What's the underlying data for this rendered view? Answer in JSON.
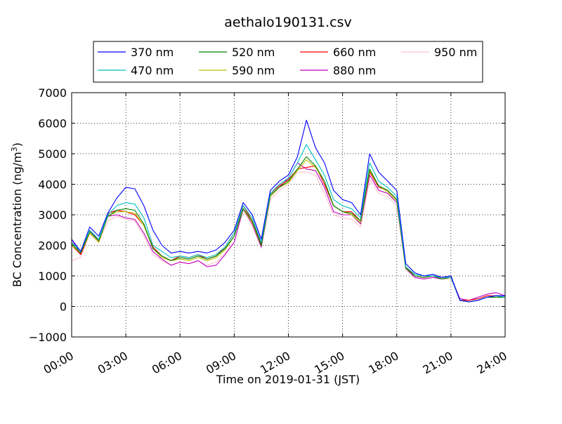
{
  "chart_data": {
    "type": "line",
    "title": "aethalo190131.csv",
    "xlabel": "Time on 2019-01-31 (JST)",
    "ylabel": "BC Concentration (ng/m³)",
    "ylabel_main": "BC Concentration (ng/m",
    "ylabel_sup": "3",
    "ylabel_close": ")",
    "xlim": [
      0,
      24
    ],
    "ylim": [
      -1000,
      7000
    ],
    "x_unit": "hours since 2019-01-31 00:00",
    "x_ticks": [
      0,
      3,
      6,
      9,
      12,
      15,
      18,
      21,
      24
    ],
    "x_tick_labels": [
      "00:00",
      "03:00",
      "06:00",
      "09:00",
      "12:00",
      "15:00",
      "18:00",
      "21:00",
      "24:00"
    ],
    "y_ticks": [
      -1000,
      0,
      1000,
      2000,
      3000,
      4000,
      5000,
      6000,
      7000
    ],
    "y_tick_labels": [
      "−1000",
      "0",
      "1000",
      "2000",
      "3000",
      "4000",
      "5000",
      "6000",
      "7000"
    ],
    "grid": true,
    "legend_position": "top (above plot)",
    "x": [
      0.0,
      0.5,
      1.0,
      1.5,
      2.0,
      2.5,
      3.0,
      3.5,
      4.0,
      4.5,
      5.0,
      5.5,
      6.0,
      6.5,
      7.0,
      7.5,
      8.0,
      8.5,
      9.0,
      9.5,
      10.0,
      10.5,
      11.0,
      11.5,
      12.0,
      12.5,
      13.0,
      13.5,
      14.0,
      14.5,
      15.0,
      15.5,
      16.0,
      16.5,
      17.0,
      17.5,
      18.0,
      18.5,
      19.0,
      19.5,
      20.0,
      20.5,
      21.0,
      21.5,
      22.0,
      22.5,
      23.0,
      23.5,
      24.0
    ],
    "series": [
      {
        "name": "370 nm",
        "color": "#0000ff",
        "values": [
          2200,
          1800,
          2600,
          2300,
          3050,
          3550,
          3900,
          3850,
          3300,
          2500,
          2000,
          1750,
          1800,
          1750,
          1800,
          1750,
          1850,
          2100,
          2500,
          3400,
          3000,
          2200,
          3800,
          4100,
          4300,
          4900,
          6100,
          5200,
          4700,
          3800,
          3500,
          3400,
          3000,
          5000,
          4400,
          4100,
          3800,
          1400,
          1100,
          1000,
          1050,
          950,
          1000,
          200,
          150,
          200,
          300,
          350,
          350
        ]
      },
      {
        "name": "470 nm",
        "color": "#00bfbf",
        "values": [
          2100,
          1800,
          2500,
          2200,
          3000,
          3300,
          3400,
          3350,
          2900,
          2000,
          1800,
          1600,
          1650,
          1600,
          1700,
          1600,
          1700,
          1950,
          2400,
          3300,
          2900,
          2100,
          3700,
          4000,
          4200,
          4700,
          5300,
          4800,
          4300,
          3500,
          3300,
          3200,
          2900,
          4700,
          4100,
          3900,
          3600,
          1300,
          1050,
          1000,
          1000,
          950,
          950,
          200,
          150,
          200,
          300,
          350,
          300
        ]
      },
      {
        "name": "520 nm",
        "color": "#008000",
        "values": [
          2050,
          1750,
          2450,
          2150,
          2950,
          3150,
          3200,
          3150,
          2700,
          1900,
          1650,
          1500,
          1600,
          1550,
          1650,
          1550,
          1650,
          1900,
          2300,
          3200,
          2800,
          2000,
          3650,
          3900,
          4100,
          4500,
          4900,
          4600,
          4100,
          3300,
          3100,
          3050,
          2800,
          4500,
          3950,
          3800,
          3500,
          1250,
          1000,
          950,
          1000,
          900,
          950,
          200,
          150,
          200,
          300,
          300,
          300
        ]
      },
      {
        "name": "590 nm",
        "color": "#bfbf00",
        "values": [
          2000,
          1750,
          2400,
          2100,
          2950,
          3100,
          3100,
          3050,
          2650,
          1900,
          1600,
          1500,
          1550,
          1500,
          1600,
          1500,
          1600,
          1850,
          2300,
          3200,
          2750,
          2000,
          3600,
          3900,
          4050,
          4450,
          4800,
          4550,
          4100,
          3300,
          3100,
          3000,
          2750,
          4450,
          3950,
          3750,
          3450,
          1250,
          1000,
          950,
          1000,
          900,
          950,
          200,
          150,
          200,
          300,
          300,
          300
        ]
      },
      {
        "name": "660 nm",
        "color": "#ff0000",
        "values": [
          2000,
          1700,
          2400,
          2100,
          3050,
          3150,
          3100,
          3000,
          2650,
          1950,
          1650,
          1500,
          1650,
          1600,
          1700,
          1550,
          1650,
          1950,
          2400,
          3300,
          2800,
          2050,
          3700,
          3950,
          4150,
          4500,
          4550,
          4600,
          4000,
          3300,
          3100,
          3100,
          2800,
          4400,
          3900,
          3800,
          3500,
          1300,
          1000,
          950,
          1000,
          950,
          1000,
          200,
          200,
          250,
          350,
          350,
          300
        ]
      },
      {
        "name": "880 nm",
        "color": "#bf00bf",
        "values": [
          2200,
          1700,
          2500,
          2150,
          2950,
          3000,
          2900,
          2850,
          2400,
          1800,
          1550,
          1350,
          1450,
          1400,
          1500,
          1300,
          1350,
          1700,
          2100,
          3200,
          2700,
          1950,
          3600,
          3900,
          4200,
          4700,
          4500,
          4450,
          3900,
          3100,
          3000,
          3000,
          2700,
          4300,
          3800,
          3700,
          3400,
          1250,
          950,
          900,
          950,
          900,
          950,
          250,
          200,
          300,
          400,
          450,
          350
        ]
      },
      {
        "name": "950 nm",
        "color": "#ffc0cb",
        "values": [
          1500,
          1600,
          2400,
          2100,
          2800,
          2950,
          2850,
          2800,
          2300,
          1700,
          1500,
          1350,
          1450,
          1400,
          1500,
          1350,
          1450,
          1750,
          2100,
          3150,
          2650,
          1900,
          3500,
          3800,
          4000,
          4400,
          4400,
          4300,
          3700,
          3000,
          2900,
          2850,
          2600,
          4150,
          3700,
          3600,
          3300,
          1200,
          950,
          900,
          950,
          900,
          900,
          250,
          200,
          250,
          350,
          350,
          300
        ]
      }
    ]
  }
}
